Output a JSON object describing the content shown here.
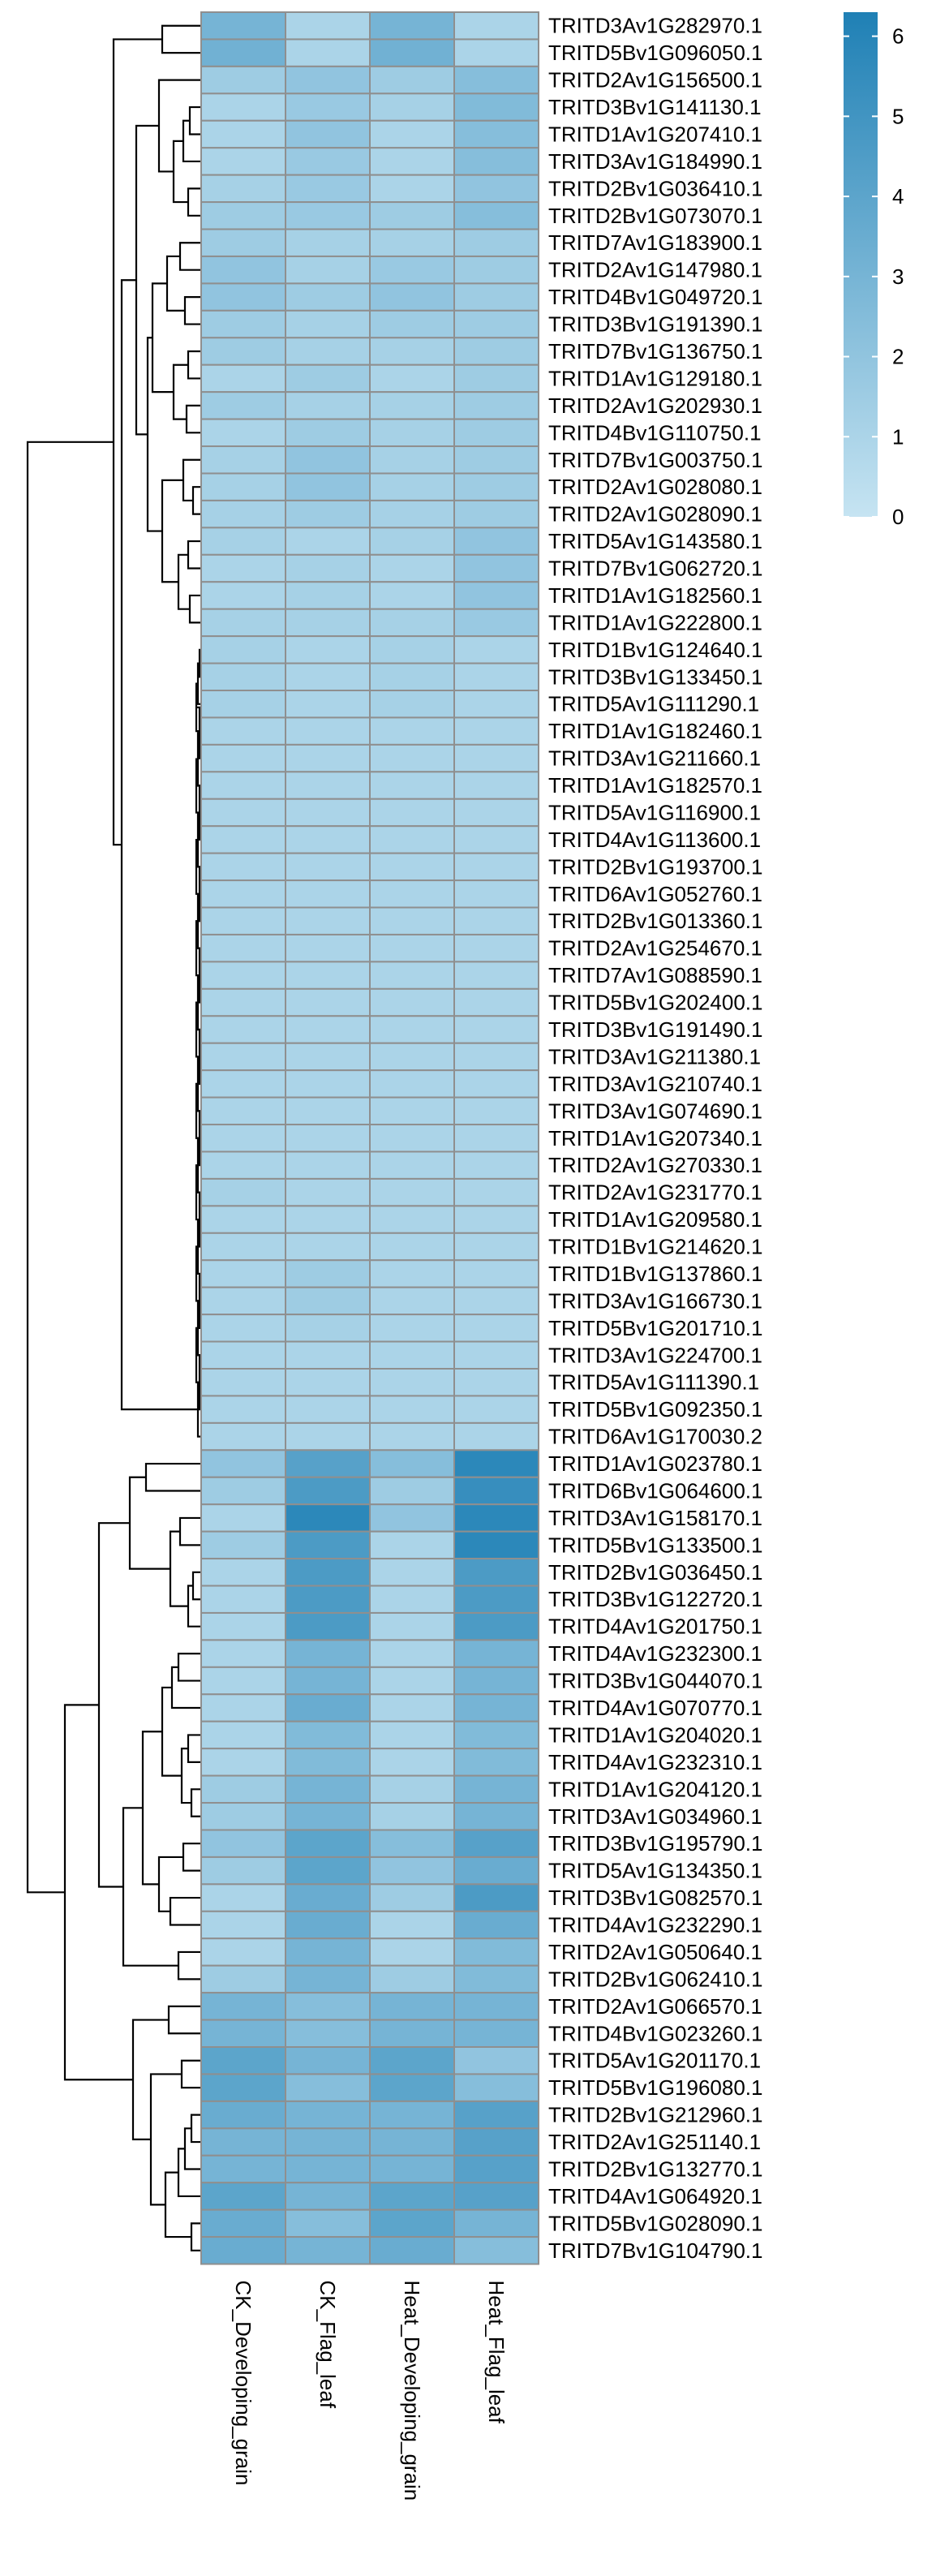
{
  "chart_data": {
    "type": "heatmap",
    "title": "",
    "columns": [
      "CK_Developing_grain",
      "CK_Flag_leaf",
      "Heat_Developing_grain",
      "Heat_Flag_leaf"
    ],
    "rows": [
      "TRITD3Av1G282970.1",
      "TRITD5Bv1G096050.1",
      "TRITD2Av1G156500.1",
      "TRITD3Bv1G141130.1",
      "TRITD1Av1G207410.1",
      "TRITD3Av1G184990.1",
      "TRITD2Bv1G036410.1",
      "TRITD2Bv1G073070.1",
      "TRITD7Av1G183900.1",
      "TRITD2Av1G147980.1",
      "TRITD4Bv1G049720.1",
      "TRITD3Bv1G191390.1",
      "TRITD7Bv1G136750.1",
      "TRITD1Av1G129180.1",
      "TRITD2Av1G202930.1",
      "TRITD4Bv1G110750.1",
      "TRITD7Bv1G003750.1",
      "TRITD2Av1G028080.1",
      "TRITD2Av1G028090.1",
      "TRITD5Av1G143580.1",
      "TRITD7Bv1G062720.1",
      "TRITD1Av1G182560.1",
      "TRITD1Av1G222800.1",
      "TRITD1Bv1G124640.1",
      "TRITD3Bv1G133450.1",
      "TRITD5Av1G111290.1",
      "TRITD1Av1G182460.1",
      "TRITD3Av1G211660.1",
      "TRITD1Av1G182570.1",
      "TRITD5Av1G116900.1",
      "TRITD4Av1G113600.1",
      "TRITD2Bv1G193700.1",
      "TRITD6Av1G052760.1",
      "TRITD2Bv1G013360.1",
      "TRITD2Av1G254670.1",
      "TRITD7Av1G088590.1",
      "TRITD5Bv1G202400.1",
      "TRITD3Bv1G191490.1",
      "TRITD3Av1G211380.1",
      "TRITD3Av1G210740.1",
      "TRITD3Av1G074690.1",
      "TRITD1Av1G207340.1",
      "TRITD2Av1G270330.1",
      "TRITD2Av1G231770.1",
      "TRITD1Av1G209580.1",
      "TRITD1Bv1G214620.1",
      "TRITD1Bv1G137860.1",
      "TRITD3Av1G166730.1",
      "TRITD5Bv1G201710.1",
      "TRITD3Av1G224700.1",
      "TRITD5Av1G111390.1",
      "TRITD5Bv1G092350.1",
      "TRITD6Av1G170030.2",
      "TRITD1Av1G023780.1",
      "TRITD6Bv1G064600.1",
      "TRITD3Av1G158170.1",
      "TRITD5Bv1G133500.1",
      "TRITD2Bv1G036450.1",
      "TRITD3Bv1G122720.1",
      "TRITD4Av1G201750.1",
      "TRITD4Av1G232300.1",
      "TRITD3Bv1G044070.1",
      "TRITD4Av1G070770.1",
      "TRITD1Av1G204020.1",
      "TRITD4Av1G232310.1",
      "TRITD1Av1G204120.1",
      "TRITD3Av1G034960.1",
      "TRITD3Bv1G195790.1",
      "TRITD5Av1G134350.1",
      "TRITD3Bv1G082570.1",
      "TRITD4Av1G232290.1",
      "TRITD2Av1G050640.1",
      "TRITD2Bv1G062410.1",
      "TRITD2Av1G066570.1",
      "TRITD4Bv1G023260.1",
      "TRITD5Av1G201170.1",
      "TRITD5Bv1G196080.1",
      "TRITD2Bv1G212960.1",
      "TRITD2Av1G251140.1",
      "TRITD2Bv1G132770.1",
      "TRITD4Av1G064920.1",
      "TRITD5Bv1G028090.1",
      "TRITD7Bv1G104790.1"
    ],
    "values": [
      [
        3.0,
        1.0,
        3.0,
        1.0
      ],
      [
        3.2,
        1.0,
        3.2,
        1.0
      ],
      [
        1.5,
        2.0,
        1.5,
        2.4
      ],
      [
        1.0,
        1.7,
        1.2,
        2.6
      ],
      [
        1.0,
        2.0,
        1.0,
        2.4
      ],
      [
        1.0,
        1.7,
        1.0,
        2.4
      ],
      [
        1.2,
        1.7,
        1.0,
        2.0
      ],
      [
        1.5,
        1.7,
        1.5,
        2.4
      ],
      [
        1.5,
        1.2,
        1.2,
        1.5
      ],
      [
        2.0,
        1.2,
        1.7,
        1.5
      ],
      [
        2.0,
        1.5,
        2.0,
        1.5
      ],
      [
        1.5,
        1.2,
        1.5,
        1.5
      ],
      [
        1.5,
        1.2,
        1.2,
        1.5
      ],
      [
        1.0,
        1.5,
        1.0,
        1.5
      ],
      [
        1.5,
        1.2,
        1.2,
        1.5
      ],
      [
        1.0,
        1.5,
        1.2,
        1.5
      ],
      [
        1.2,
        2.0,
        1.2,
        1.5
      ],
      [
        1.2,
        2.0,
        1.2,
        1.5
      ],
      [
        1.2,
        1.5,
        1.2,
        1.5
      ],
      [
        1.2,
        1.0,
        1.2,
        2.0
      ],
      [
        1.0,
        1.2,
        1.0,
        2.0
      ],
      [
        1.0,
        1.2,
        1.0,
        2.0
      ],
      [
        1.2,
        1.2,
        1.2,
        1.7
      ],
      [
        1.2,
        1.0,
        1.2,
        1.0
      ],
      [
        1.2,
        1.0,
        1.2,
        1.0
      ],
      [
        1.2,
        1.0,
        1.2,
        1.0
      ],
      [
        1.0,
        1.0,
        1.0,
        1.0
      ],
      [
        1.0,
        1.0,
        1.0,
        1.0
      ],
      [
        1.0,
        1.0,
        1.0,
        1.0
      ],
      [
        1.0,
        1.0,
        1.0,
        1.0
      ],
      [
        1.0,
        1.0,
        1.0,
        1.0
      ],
      [
        1.0,
        1.0,
        1.0,
        1.0
      ],
      [
        1.0,
        1.0,
        1.0,
        1.0
      ],
      [
        1.0,
        1.0,
        1.0,
        1.0
      ],
      [
        1.0,
        1.0,
        1.0,
        1.0
      ],
      [
        1.0,
        1.0,
        1.0,
        1.0
      ],
      [
        1.0,
        1.0,
        1.0,
        1.0
      ],
      [
        1.0,
        1.0,
        1.0,
        1.0
      ],
      [
        1.0,
        1.0,
        1.0,
        1.0
      ],
      [
        1.0,
        1.0,
        1.0,
        1.0
      ],
      [
        1.0,
        1.0,
        1.0,
        1.0
      ],
      [
        1.0,
        1.0,
        1.0,
        1.0
      ],
      [
        1.0,
        1.0,
        1.0,
        1.0
      ],
      [
        1.2,
        1.0,
        1.0,
        1.0
      ],
      [
        1.0,
        1.0,
        1.0,
        1.0
      ],
      [
        1.0,
        1.0,
        1.0,
        1.0
      ],
      [
        1.0,
        1.5,
        1.0,
        1.0
      ],
      [
        1.0,
        1.5,
        1.0,
        1.0
      ],
      [
        1.0,
        1.2,
        1.0,
        1.0
      ],
      [
        1.0,
        1.0,
        1.0,
        1.0
      ],
      [
        1.0,
        1.0,
        1.0,
        1.0
      ],
      [
        1.0,
        1.0,
        1.0,
        1.0
      ],
      [
        1.0,
        1.0,
        1.0,
        1.0
      ],
      [
        2.0,
        4.2,
        2.4,
        5.8
      ],
      [
        1.5,
        4.6,
        1.5,
        5.4
      ],
      [
        1.0,
        5.8,
        2.0,
        5.8
      ],
      [
        1.5,
        4.6,
        1.0,
        5.8
      ],
      [
        1.0,
        4.6,
        1.0,
        4.6
      ],
      [
        1.0,
        4.6,
        1.0,
        4.6
      ],
      [
        1.0,
        4.6,
        1.0,
        4.6
      ],
      [
        1.0,
        3.0,
        1.0,
        3.0
      ],
      [
        1.0,
        3.0,
        1.0,
        3.0
      ],
      [
        1.0,
        3.5,
        1.0,
        3.0
      ],
      [
        1.0,
        2.6,
        1.0,
        2.6
      ],
      [
        1.0,
        2.6,
        1.0,
        2.6
      ],
      [
        1.5,
        3.0,
        1.2,
        3.0
      ],
      [
        1.5,
        3.0,
        1.2,
        3.0
      ],
      [
        2.0,
        4.0,
        2.4,
        4.2
      ],
      [
        1.5,
        4.0,
        2.0,
        3.5
      ],
      [
        1.0,
        3.5,
        1.5,
        4.6
      ],
      [
        1.0,
        3.5,
        1.0,
        3.5
      ],
      [
        1.0,
        3.0,
        1.0,
        2.6
      ],
      [
        1.5,
        3.0,
        1.5,
        2.6
      ],
      [
        3.0,
        2.4,
        3.0,
        3.0
      ],
      [
        3.0,
        2.4,
        3.0,
        3.0
      ],
      [
        4.0,
        3.0,
        4.0,
        2.0
      ],
      [
        4.0,
        2.4,
        4.0,
        2.4
      ],
      [
        3.5,
        3.0,
        3.0,
        4.2
      ],
      [
        3.0,
        3.0,
        3.0,
        4.2
      ],
      [
        3.0,
        3.0,
        3.0,
        4.2
      ],
      [
        4.0,
        3.0,
        4.0,
        4.2
      ],
      [
        3.5,
        2.4,
        4.0,
        3.0
      ],
      [
        3.5,
        3.0,
        3.5,
        2.4
      ]
    ],
    "scale": {
      "min": 0,
      "max": 6.3,
      "low_color": "#c6e4f2",
      "high_color": "#1f80b5",
      "cell_border": "#8f8f8f",
      "tree_color": "#000000"
    },
    "legend": {
      "ticks": [
        "0",
        "1",
        "2",
        "3",
        "4",
        "5",
        "6"
      ]
    }
  }
}
